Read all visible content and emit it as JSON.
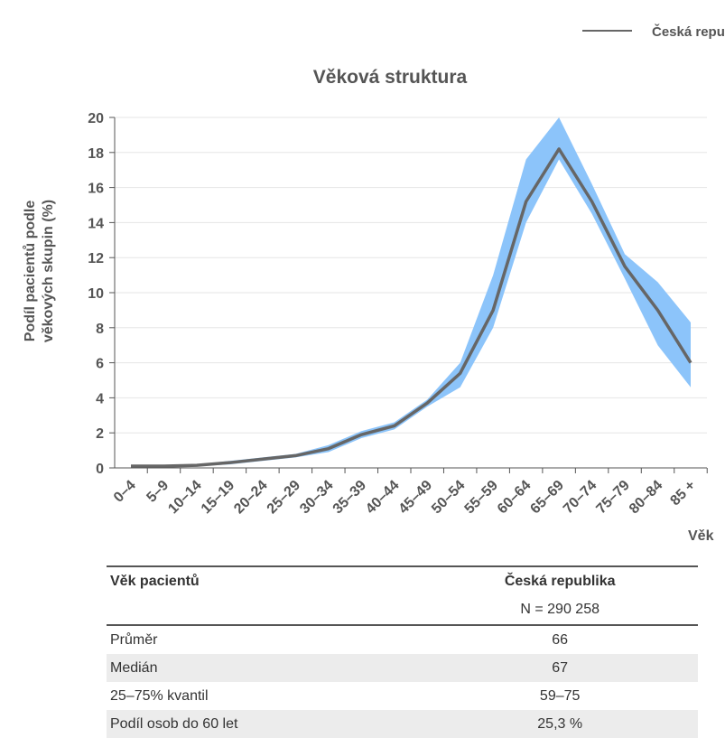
{
  "chart_data": {
    "type": "line",
    "title": "Věková struktura",
    "ylabel": [
      "Podíl pacientů podle",
      "věkových skupin (%)"
    ],
    "xlabel": "Věk",
    "categories": [
      "0–4",
      "5–9",
      "10–14",
      "15–19",
      "20–24",
      "25–29",
      "30–34",
      "35–39",
      "40–44",
      "45–49",
      "50–54",
      "55–59",
      "60–64",
      "65–69",
      "70–74",
      "75–79",
      "80–84",
      "85 +"
    ],
    "series": [
      {
        "name": "Česká republika",
        "color": "#666666",
        "values": [
          0.1,
          0.1,
          0.15,
          0.3,
          0.5,
          0.7,
          1.1,
          1.9,
          2.4,
          3.7,
          5.4,
          9.0,
          15.2,
          18.2,
          15.2,
          11.5,
          9.0,
          6.0
        ]
      }
    ],
    "band": {
      "color": "#8cc4fa",
      "upper": [
        0.15,
        0.15,
        0.2,
        0.4,
        0.6,
        0.8,
        1.3,
        2.1,
        2.6,
        3.9,
        6.0,
        11.0,
        17.6,
        20.0,
        16.2,
        12.2,
        10.6,
        8.3
      ],
      "lower": [
        0.05,
        0.05,
        0.1,
        0.2,
        0.4,
        0.6,
        0.9,
        1.7,
        2.2,
        3.5,
        4.6,
        8.0,
        14.0,
        17.6,
        14.5,
        10.8,
        7.0,
        4.6
      ]
    },
    "ylim": [
      0,
      20
    ],
    "yticks": [
      0,
      2,
      4,
      6,
      8,
      10,
      12,
      14,
      16,
      18,
      20
    ],
    "grid": true
  },
  "table": {
    "header": [
      "Věk pacientů",
      "Česká republika"
    ],
    "subheader": "N = 290 258",
    "rows": [
      [
        "Průměr",
        "66"
      ],
      [
        "Medián",
        "67"
      ],
      [
        "25–75% kvantil",
        "59–75"
      ],
      [
        "Podíl osob do 60 let",
        "25,3 %"
      ]
    ]
  }
}
